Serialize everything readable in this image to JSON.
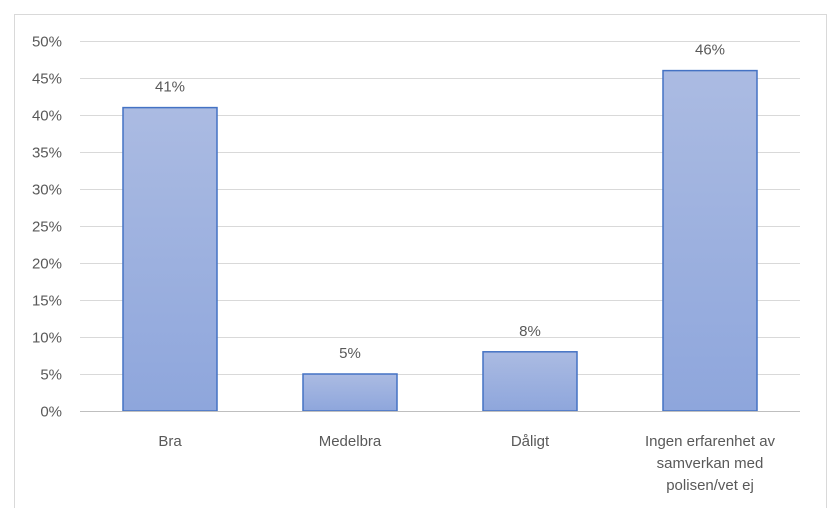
{
  "chart_data": {
    "type": "bar",
    "categories": [
      "Bra",
      "Medelbra",
      "Dåligt",
      "Ingen erfarenhet av samverkan med polisen/vet ej"
    ],
    "category_label_lines": [
      [
        "Bra"
      ],
      [
        "Medelbra"
      ],
      [
        "Dåligt"
      ],
      [
        "Ingen erfarenhet av",
        "samverkan med",
        "polisen/vet ej"
      ]
    ],
    "values": [
      41,
      5,
      8,
      46
    ],
    "data_labels": [
      "41%",
      "5%",
      "8%",
      "46%"
    ],
    "title": "",
    "xlabel": "",
    "ylabel": "",
    "ylim": [
      0,
      50
    ],
    "y_ticks": [
      0,
      5,
      10,
      15,
      20,
      25,
      30,
      35,
      40,
      45,
      50
    ],
    "y_tick_labels": [
      "0%",
      "5%",
      "10%",
      "15%",
      "20%",
      "25%",
      "30%",
      "35%",
      "40%",
      "45%",
      "50%"
    ],
    "grid": true,
    "legend": "none",
    "colors": {
      "bar_fill_top": "#abbbe2",
      "bar_fill_bottom": "#8ea6dc",
      "bar_stroke": "#4472c4",
      "gridline": "#d9d9d9",
      "text": "#595959"
    }
  }
}
